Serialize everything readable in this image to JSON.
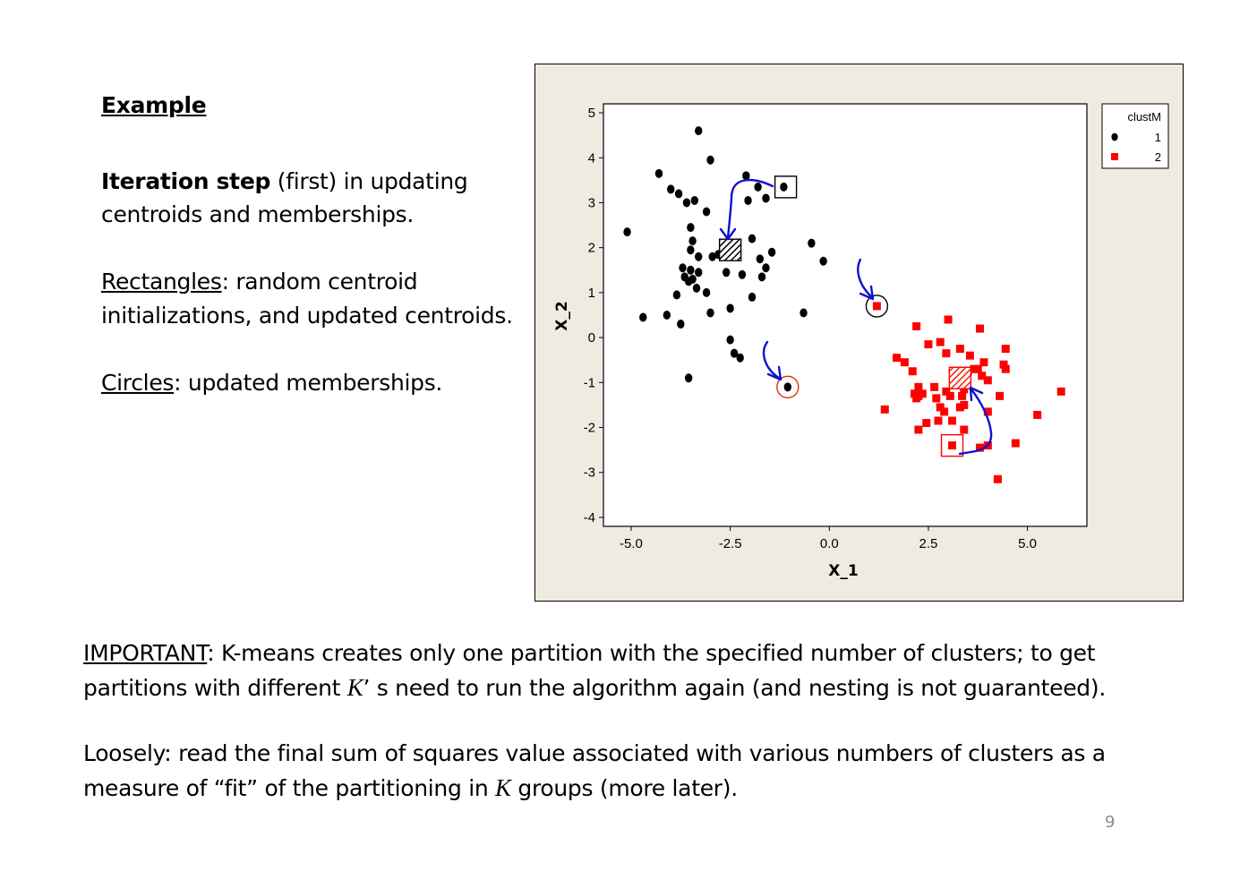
{
  "slide": {
    "heading": "Example",
    "para1_bold": "Iteration step",
    "para1_rest": " (first) in updating",
    "para1_line2": "centroids and memberships.",
    "rect_label": "Rectangles",
    "rect_rest": ": random centroid",
    "rect_line2": "initializations, and updated centroids.",
    "circ_label": "Circles",
    "circ_rest": ": updated memberships.",
    "important_label": "IMPORTANT",
    "important_rest": ": K-means creates only one partition with the specified number of clusters; to get",
    "important_line2_a": "partitions with different ",
    "k_symbol": "K",
    "apostrophe": "’",
    "important_line2_b": " s need to run the algorithm again (and nesting is not guaranteed).",
    "loosely_line1": "Loosely: read the final sum of squares value associated with various numbers of clusters as a",
    "loosely_line2_a": "measure of ",
    "open_quote": "“",
    "fit_word": "fit",
    "close_quote": "”",
    "loosely_line2_b": " of the partitioning in ",
    "loosely_line2_c": " groups (more later).",
    "page_number": "9"
  },
  "chart_data": {
    "type": "scatter",
    "xlabel": "X_1",
    "ylabel": "X_2",
    "xlim": [
      -5.7,
      6.5
    ],
    "ylim": [
      -4.2,
      5.2
    ],
    "xticks": [
      -5.0,
      -2.5,
      0.0,
      2.5,
      5.0
    ],
    "xtick_labels": [
      "-5.0",
      "-2.5",
      "0.0",
      "2.5",
      "5.0"
    ],
    "yticks": [
      5,
      4,
      3,
      2,
      1,
      0,
      -1,
      -2,
      -3,
      -4
    ],
    "ytick_labels": [
      "5",
      "4",
      "3",
      "2",
      "1",
      "0",
      "-1",
      "-2",
      "-3",
      "-4"
    ],
    "legend": {
      "title": "clustM",
      "placement": "top-right",
      "entries": [
        "1",
        "2"
      ]
    },
    "colors": {
      "panel_bg": "#efebe1",
      "cluster1": "#000000",
      "cluster2": "#ff0000",
      "arrow": "#1010d0",
      "circle2": "#e03010"
    },
    "series": [
      {
        "name": "1",
        "marker": "circle",
        "color": "#000000",
        "points": [
          [
            -3.3,
            4.6
          ],
          [
            -3.0,
            3.95
          ],
          [
            -4.3,
            3.65
          ],
          [
            -4.0,
            3.3
          ],
          [
            -3.8,
            3.2
          ],
          [
            -3.6,
            3.0
          ],
          [
            -3.4,
            3.05
          ],
          [
            -3.1,
            2.8
          ],
          [
            -2.1,
            3.6
          ],
          [
            -2.05,
            3.05
          ],
          [
            -1.8,
            3.35
          ],
          [
            -1.6,
            3.1
          ],
          [
            -1.15,
            3.35
          ],
          [
            -5.1,
            2.35
          ],
          [
            -3.5,
            2.45
          ],
          [
            -3.45,
            2.15
          ],
          [
            -1.95,
            2.2
          ],
          [
            -0.45,
            2.1
          ],
          [
            -0.15,
            1.7
          ],
          [
            -3.5,
            1.95
          ],
          [
            -3.3,
            1.8
          ],
          [
            -2.95,
            1.8
          ],
          [
            -2.8,
            1.85
          ],
          [
            -2.6,
            1.95
          ],
          [
            -1.75,
            1.75
          ],
          [
            -1.45,
            1.9
          ],
          [
            -3.7,
            1.55
          ],
          [
            -3.5,
            1.5
          ],
          [
            -3.3,
            1.45
          ],
          [
            -2.6,
            1.45
          ],
          [
            -2.2,
            1.4
          ],
          [
            -1.6,
            1.55
          ],
          [
            -1.7,
            1.35
          ],
          [
            -3.65,
            1.35
          ],
          [
            -3.55,
            1.25
          ],
          [
            -3.45,
            1.3
          ],
          [
            -3.35,
            1.1
          ],
          [
            -3.85,
            0.95
          ],
          [
            -3.1,
            1.0
          ],
          [
            -1.95,
            0.9
          ],
          [
            -2.5,
            0.65
          ],
          [
            -3.0,
            0.55
          ],
          [
            -4.1,
            0.5
          ],
          [
            -4.7,
            0.45
          ],
          [
            -3.75,
            0.3
          ],
          [
            -0.65,
            0.55
          ],
          [
            -2.5,
            -0.05
          ],
          [
            -2.4,
            -0.35
          ],
          [
            -2.25,
            -0.45
          ],
          [
            -3.55,
            -0.9
          ],
          [
            -1.05,
            -1.1
          ]
        ]
      },
      {
        "name": "2",
        "marker": "square",
        "color": "#ff0000",
        "points": [
          [
            1.2,
            0.7
          ],
          [
            2.2,
            0.25
          ],
          [
            3.0,
            0.4
          ],
          [
            3.8,
            0.2
          ],
          [
            2.5,
            -0.15
          ],
          [
            2.8,
            -0.1
          ],
          [
            3.3,
            -0.25
          ],
          [
            1.7,
            -0.45
          ],
          [
            2.95,
            -0.35
          ],
          [
            3.55,
            -0.4
          ],
          [
            4.45,
            -0.25
          ],
          [
            1.9,
            -0.55
          ],
          [
            2.1,
            -0.75
          ],
          [
            3.9,
            -0.55
          ],
          [
            4.4,
            -0.6
          ],
          [
            4.45,
            -0.7
          ],
          [
            3.5,
            -0.75
          ],
          [
            3.65,
            -0.7
          ],
          [
            3.75,
            -0.7
          ],
          [
            3.85,
            -0.85
          ],
          [
            4.0,
            -0.95
          ],
          [
            2.65,
            -1.1
          ],
          [
            2.25,
            -1.1
          ],
          [
            2.95,
            -1.2
          ],
          [
            3.4,
            -1.15
          ],
          [
            2.25,
            -1.3
          ],
          [
            2.2,
            -1.35
          ],
          [
            2.15,
            -1.25
          ],
          [
            2.35,
            -1.25
          ],
          [
            2.7,
            -1.35
          ],
          [
            3.05,
            -1.3
          ],
          [
            3.35,
            -1.3
          ],
          [
            4.3,
            -1.3
          ],
          [
            5.85,
            -1.2
          ],
          [
            2.8,
            -1.55
          ],
          [
            3.3,
            -1.55
          ],
          [
            3.4,
            -1.5
          ],
          [
            1.4,
            -1.6
          ],
          [
            2.9,
            -1.65
          ],
          [
            4.0,
            -1.65
          ],
          [
            5.25,
            -1.72
          ],
          [
            2.75,
            -1.85
          ],
          [
            3.1,
            -1.85
          ],
          [
            2.45,
            -1.9
          ],
          [
            2.25,
            -2.05
          ],
          [
            3.4,
            -2.05
          ],
          [
            3.1,
            -2.4
          ],
          [
            3.8,
            -2.45
          ],
          [
            4.0,
            -2.4
          ],
          [
            4.7,
            -2.35
          ],
          [
            4.25,
            -3.15
          ]
        ]
      }
    ],
    "annotations": [
      {
        "kind": "initial-centroid",
        "cluster": "1",
        "x": -1.1,
        "y": 3.35
      },
      {
        "kind": "updated-centroid",
        "cluster": "1",
        "x": -2.5,
        "y": 1.95
      },
      {
        "kind": "initial-centroid",
        "cluster": "2",
        "x": 3.1,
        "y": -2.4
      },
      {
        "kind": "updated-centroid",
        "cluster": "2",
        "x": 3.3,
        "y": -0.9
      },
      {
        "kind": "updated-membership",
        "cluster": "1",
        "x": -1.05,
        "y": -1.1
      },
      {
        "kind": "updated-membership",
        "cluster": "2",
        "x": 1.2,
        "y": 0.7
      }
    ]
  }
}
